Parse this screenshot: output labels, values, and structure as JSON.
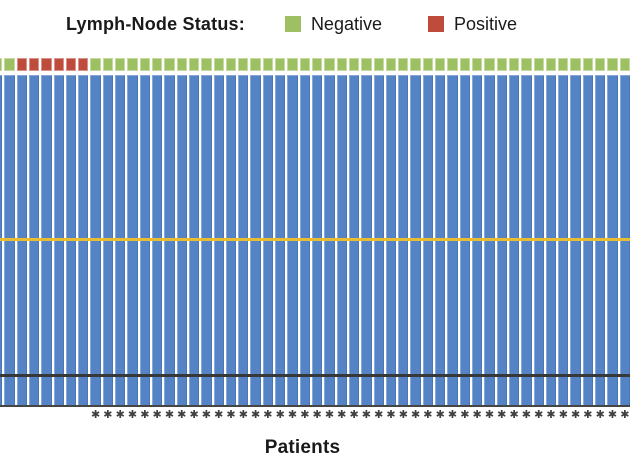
{
  "legend": {
    "title": "Lymph-Node Status:",
    "items": [
      {
        "label": "Negative",
        "color": "#9dc162",
        "status_code": "N"
      },
      {
        "label": "Positive",
        "color": "#bf4b3c",
        "status_code": "P"
      }
    ]
  },
  "footnote_symbol": "✱",
  "colors": {
    "bar_blue": "#5584c6",
    "negative_green": "#9dc162",
    "positive_red": "#bf4b3c",
    "yellow_line": "#e8bd32",
    "dark_line": "#383838",
    "axis_line": "#454545",
    "text": "#1a1a1a",
    "asterisk": "#3f3f3f"
  },
  "chart_data": {
    "type": "bar",
    "title": "Lymph-Node Status",
    "xlabel": "Patients",
    "ylabel": "",
    "legend_position": "top",
    "grid": false,
    "n_patients_visible": 52,
    "bars_uniform_height": true,
    "bar_height_relative": 1.0,
    "statuses": [
      "N",
      "N",
      "P",
      "P",
      "P",
      "P",
      "P",
      "P",
      "N",
      "N",
      "N",
      "N",
      "N",
      "N",
      "N",
      "N",
      "N",
      "N",
      "N",
      "N",
      "N",
      "N",
      "N",
      "N",
      "N",
      "N",
      "N",
      "N",
      "N",
      "N",
      "N",
      "N",
      "N",
      "N",
      "N",
      "N",
      "N",
      "N",
      "N",
      "N",
      "N",
      "N",
      "N",
      "N",
      "N",
      "N",
      "N",
      "N",
      "N",
      "N",
      "N",
      "N"
    ],
    "n_negative": 46,
    "n_positive": 6,
    "asterisk_from_patient": 9,
    "n_asterisks": 44,
    "overlay_lines": [
      {
        "name": "yellow-reference-line",
        "color": "#e8bd32",
        "y_fraction_from_top": 0.5
      },
      {
        "name": "black-reference-line",
        "color": "#383838",
        "y_fraction_from_top": 0.91
      }
    ]
  }
}
